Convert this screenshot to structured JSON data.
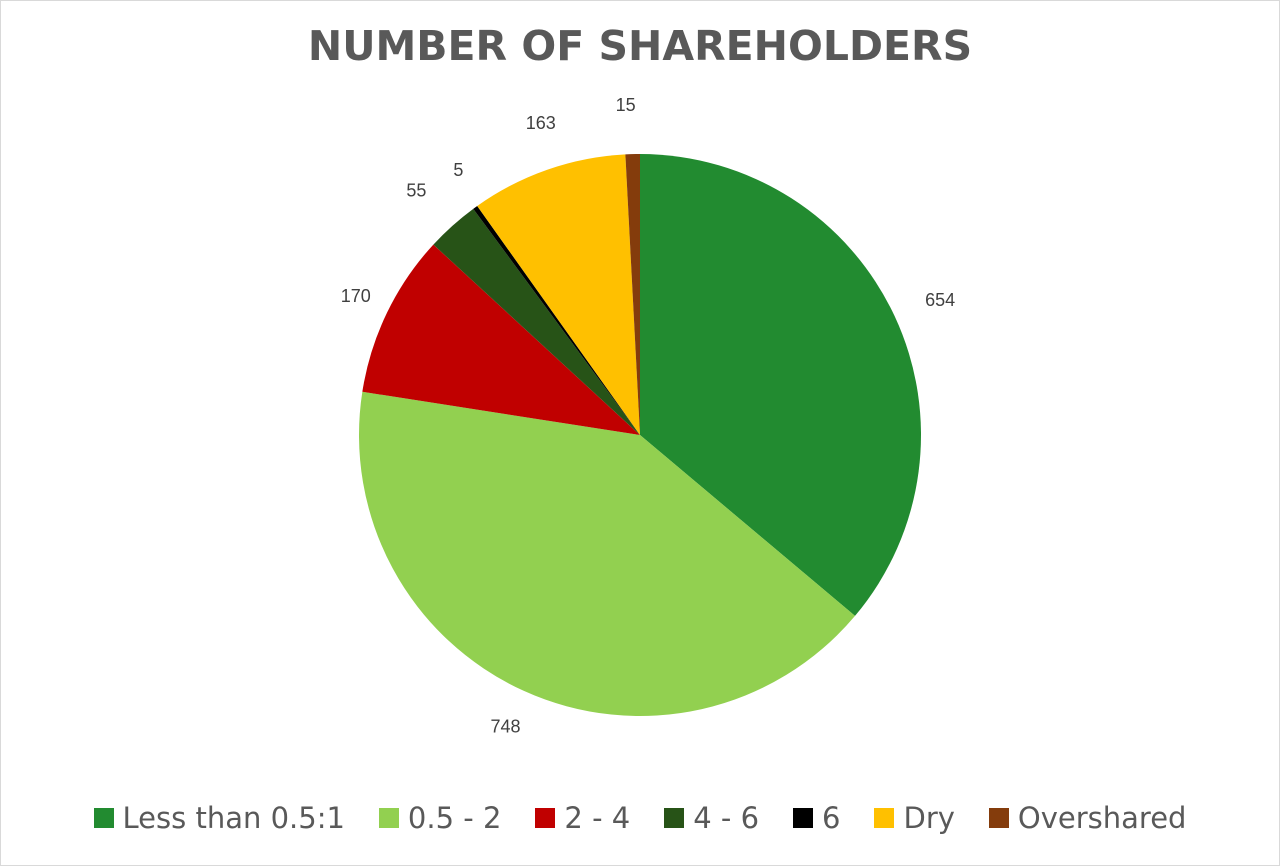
{
  "chart_data": {
    "type": "pie",
    "title": "NUMBER OF SHAREHOLDERS",
    "categories": [
      "Less than 0.5:1",
      "0.5 - 2",
      "2 - 4",
      "4 - 6",
      "6",
      "Dry",
      "Overshared"
    ],
    "values": [
      654,
      748,
      170,
      55,
      5,
      163,
      15
    ],
    "colors": [
      "#228B30",
      "#92D050",
      "#C00000",
      "#275317",
      "#000000",
      "#FFC000",
      "#843C0C"
    ],
    "start_angle_deg": 0,
    "direction": "clockwise",
    "data_labels": [
      "654",
      "748",
      "170",
      "55",
      "5",
      "163",
      "15"
    ],
    "legend_position": "bottom"
  },
  "title": "NUMBER OF SHAREHOLDERS",
  "legend": [
    {
      "label": "Less than 0.5:1",
      "color": "#228B30"
    },
    {
      "label": "0.5 - 2",
      "color": "#92D050"
    },
    {
      "label": "2 - 4",
      "color": "#C00000"
    },
    {
      "label": "4 - 6",
      "color": "#275317"
    },
    {
      "label": "6",
      "color": "#000000"
    },
    {
      "label": "Dry",
      "color": "#FFC000"
    },
    {
      "label": "Overshared",
      "color": "#843C0C"
    }
  ]
}
